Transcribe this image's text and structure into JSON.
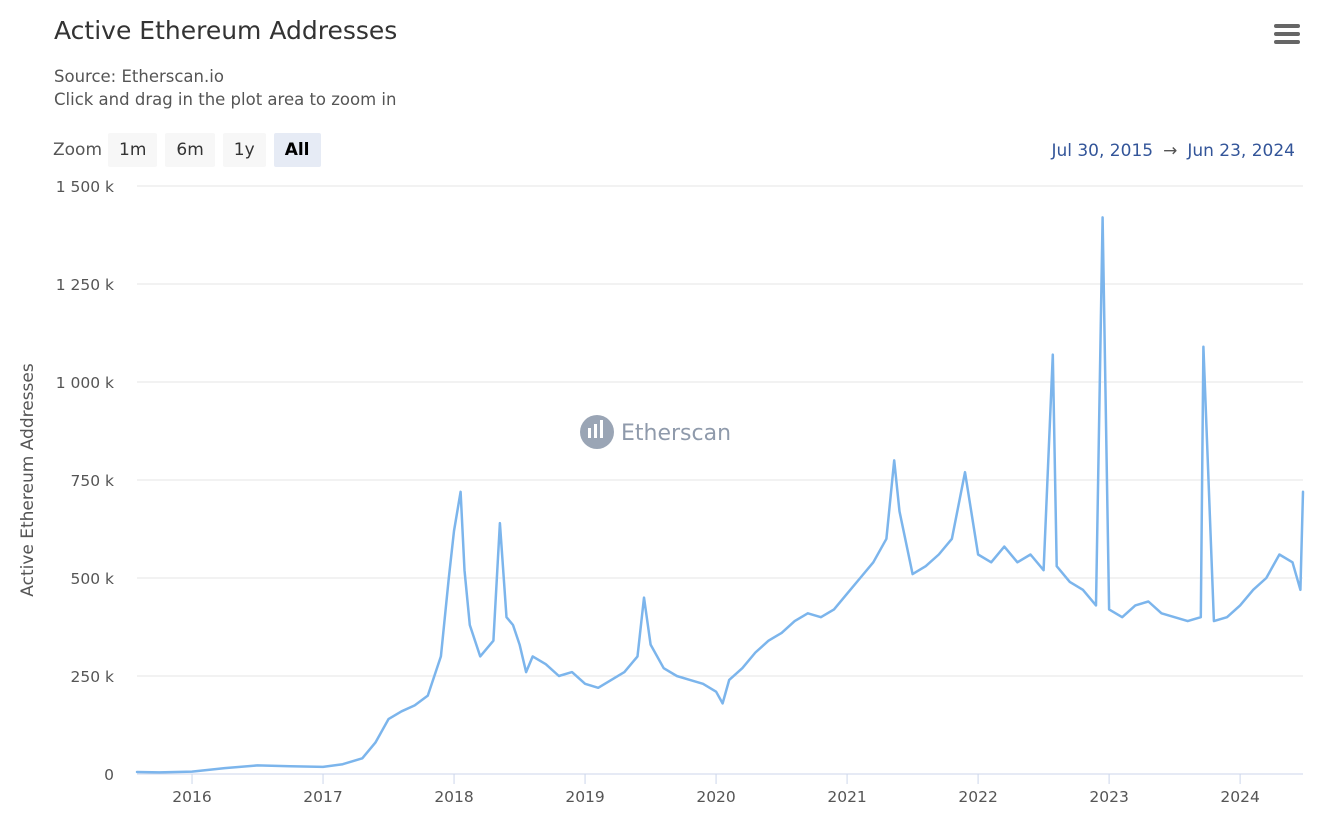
{
  "header": {
    "title": "Active Ethereum Addresses",
    "source": "Source: Etherscan.io",
    "hint": "Click and drag in the plot area to zoom in"
  },
  "zoom": {
    "label": "Zoom",
    "buttons": [
      "1m",
      "6m",
      "1y",
      "All"
    ],
    "active": "All"
  },
  "range": {
    "from": "Jul 30, 2015",
    "arrow": "→",
    "to": "Jun 23, 2024"
  },
  "menu_icon": "hamburger-menu-icon",
  "watermark": {
    "text": "Etherscan",
    "icon": "etherscan-logo-icon"
  },
  "colors": {
    "line": "#7cb5ec",
    "grid": "#e6e6e6",
    "axis_text": "#555555",
    "range_text": "#335599"
  },
  "chart_data": {
    "type": "line",
    "ylabel": "Active Ethereum Addresses",
    "ylim": [
      0,
      1500000
    ],
    "xlim": [
      2015.58,
      2024.48
    ],
    "yticks": [
      0,
      250000,
      500000,
      750000,
      1000000,
      1250000,
      1500000
    ],
    "ytick_labels": [
      "0",
      "250 k",
      "500 k",
      "750 k",
      "1 000 k",
      "1 250 k",
      "1 500 k"
    ],
    "xticks": [
      2016,
      2017,
      2018,
      2019,
      2020,
      2021,
      2022,
      2023,
      2024
    ],
    "xtick_labels": [
      "2016",
      "2017",
      "2018",
      "2019",
      "2020",
      "2021",
      "2022",
      "2023",
      "2024"
    ],
    "grid": true,
    "series": [
      {
        "x": [
          2015.58,
          2015.75,
          2016.0,
          2016.25,
          2016.5,
          2016.75,
          2017.0,
          2017.15,
          2017.3,
          2017.4,
          2017.5,
          2017.6,
          2017.7,
          2017.8,
          2017.9,
          2017.96,
          2018.0,
          2018.05,
          2018.08,
          2018.12,
          2018.2,
          2018.3,
          2018.35,
          2018.4,
          2018.45,
          2018.5,
          2018.55,
          2018.6,
          2018.7,
          2018.8,
          2018.9,
          2019.0,
          2019.1,
          2019.2,
          2019.3,
          2019.4,
          2019.45,
          2019.5,
          2019.6,
          2019.7,
          2019.8,
          2019.9,
          2020.0,
          2020.05,
          2020.1,
          2020.2,
          2020.3,
          2020.4,
          2020.5,
          2020.6,
          2020.7,
          2020.8,
          2020.9,
          2021.0,
          2021.1,
          2021.2,
          2021.3,
          2021.36,
          2021.4,
          2021.5,
          2021.6,
          2021.7,
          2021.8,
          2021.9,
          2022.0,
          2022.1,
          2022.2,
          2022.3,
          2022.4,
          2022.5,
          2022.57,
          2022.6,
          2022.7,
          2022.8,
          2022.9,
          2022.95,
          2023.0,
          2023.1,
          2023.2,
          2023.3,
          2023.4,
          2023.5,
          2023.6,
          2023.7,
          2023.72,
          2023.8,
          2023.9,
          2024.0,
          2024.1,
          2024.2,
          2024.3,
          2024.4,
          2024.46,
          2024.48
        ],
        "y": [
          5000,
          4000,
          6000,
          15000,
          22000,
          20000,
          18000,
          25000,
          40000,
          80000,
          140000,
          160000,
          175000,
          200000,
          300000,
          500000,
          620000,
          720000,
          520000,
          380000,
          300000,
          340000,
          640000,
          400000,
          380000,
          330000,
          260000,
          300000,
          280000,
          250000,
          260000,
          230000,
          220000,
          240000,
          260000,
          300000,
          450000,
          330000,
          270000,
          250000,
          240000,
          230000,
          210000,
          180000,
          240000,
          270000,
          310000,
          340000,
          360000,
          390000,
          410000,
          400000,
          420000,
          460000,
          500000,
          540000,
          600000,
          800000,
          670000,
          510000,
          530000,
          560000,
          600000,
          770000,
          560000,
          540000,
          580000,
          540000,
          560000,
          520000,
          1070000,
          530000,
          490000,
          470000,
          430000,
          1420000,
          420000,
          400000,
          430000,
          440000,
          410000,
          400000,
          390000,
          400000,
          1090000,
          390000,
          400000,
          430000,
          470000,
          500000,
          560000,
          540000,
          470000,
          720000
        ]
      }
    ]
  }
}
